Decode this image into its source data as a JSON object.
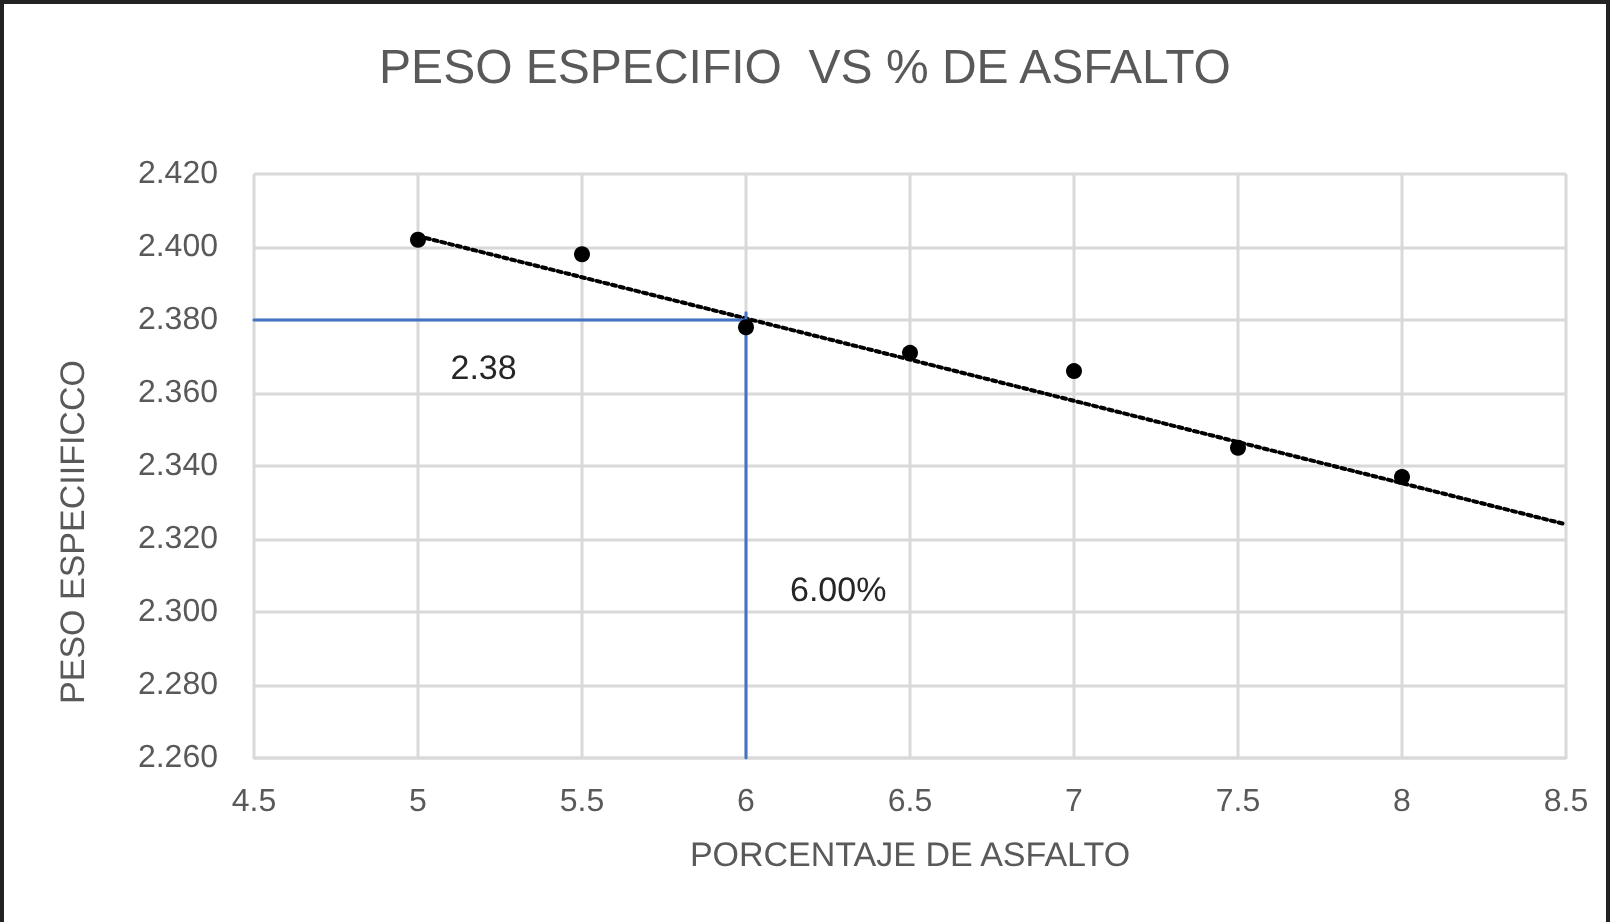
{
  "chart_data": {
    "type": "scatter",
    "title": "PESO ESPECIFIO  VS % DE ASFALTO",
    "xlabel": "PORCENTAJE DE ASFALTO",
    "ylabel": "PESO ESPECIIFICCO",
    "xlim": [
      4.5,
      8.5
    ],
    "xticks": [
      4.5,
      5,
      5.5,
      6,
      6.5,
      7,
      7.5,
      8,
      8.5
    ],
    "ylim": [
      2.26,
      2.42
    ],
    "yticks": [
      {
        "value": 2.26,
        "label": "2.260"
      },
      {
        "value": 2.28,
        "label": "2.280"
      },
      {
        "value": 2.3,
        "label": "2.300"
      },
      {
        "value": 2.32,
        "label": "2.320"
      },
      {
        "value": 2.34,
        "label": "2.340"
      },
      {
        "value": 2.36,
        "label": "2.360"
      },
      {
        "value": 2.38,
        "label": "2.380"
      },
      {
        "value": 2.4,
        "label": "2.400"
      },
      {
        "value": 2.42,
        "label": "2.420"
      }
    ],
    "grid": true,
    "marker": "circle",
    "series": [
      {
        "color": "#000000",
        "x": [
          5,
          5.5,
          6,
          6.5,
          7,
          7.5,
          8
        ],
        "values": [
          2.402,
          2.398,
          2.378,
          2.371,
          2.366,
          2.345,
          2.337
        ]
      },
      {
        "type": "line",
        "color": "#000000",
        "line_style": "dotted",
        "marker": "none",
        "x": [
          5,
          8.5
        ],
        "values": [
          2.403,
          2.324
        ]
      },
      {
        "type": "line",
        "color": "#4472c4",
        "line_style": "solid",
        "marker": "none",
        "x": [
          4.5,
          6
        ],
        "values": [
          2.38,
          2.38
        ]
      },
      {
        "type": "line",
        "color": "#4472c4",
        "line_style": "solid",
        "marker": "none",
        "x": [
          6,
          6
        ],
        "values": [
          2.382,
          2.26
        ]
      }
    ],
    "annotations": [
      {
        "text": "2.38",
        "x": 5.2,
        "y": 2.38
      },
      {
        "text": "6.00%",
        "x": 6,
        "y": 2.306
      }
    ]
  }
}
